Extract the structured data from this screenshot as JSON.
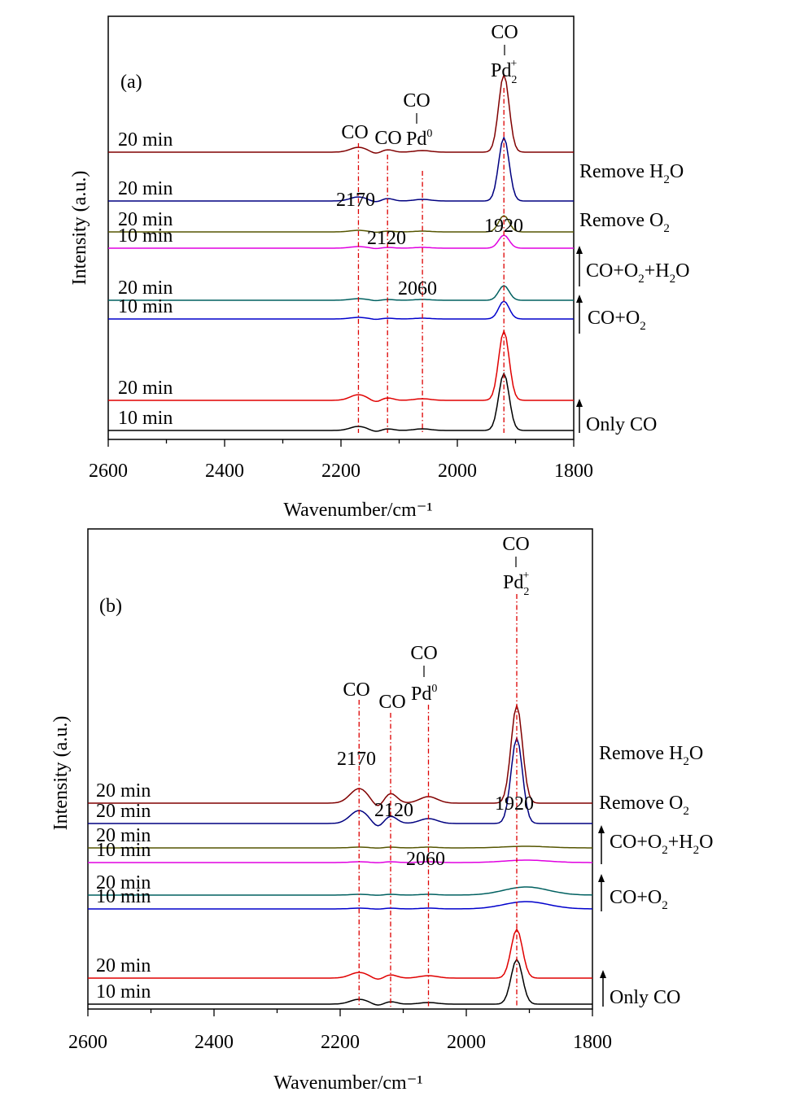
{
  "chart_data": [
    {
      "type": "line",
      "panel_label": "(a)",
      "xlabel": "Wavenumber/cm⁻¹",
      "ylabel": "Intensity (a.u.)",
      "xlim": [
        2600,
        1800
      ],
      "xticks": [
        "2600",
        "2400",
        "2200",
        "2000",
        "1800"
      ],
      "peak_positions": [
        2170,
        2120,
        2060,
        1920
      ],
      "peak_labels": [
        "2170",
        "2120",
        "2060",
        "1920"
      ],
      "species": {
        "co": "CO",
        "pd0": "Pd",
        "pd0_sup": "0",
        "pd2": "Pd",
        "pd2_sub": "2",
        "pd2_sup": "+"
      },
      "conditions": [
        {
          "main": "Only CO"
        },
        {
          "main": "CO+O",
          "sub": "2"
        },
        {
          "main": "CO+O",
          "sub": "2",
          "tail": "+H",
          "sub2": "2",
          "tail2": "O"
        },
        {
          "main": "Remove O",
          "sub": "2"
        },
        {
          "main": "Remove H",
          "sub": "2",
          "tail": "O"
        }
      ],
      "series": [
        {
          "name": "10 min",
          "condition": "Only CO",
          "color": "#000000",
          "offset": 0.03,
          "bands": [
            0.05,
            0.02,
            0.02,
            0.7
          ],
          "broad": 0.0
        },
        {
          "name": "20 min",
          "condition": "Only CO",
          "color": "#e00000",
          "offset": 0.4,
          "bands": [
            0.07,
            0.03,
            0.02,
            0.85
          ],
          "broad": 0.0
        },
        {
          "name": "10 min",
          "condition": "CO+O2",
          "color": "#0000cc",
          "offset": 1.4,
          "bands": [
            0.02,
            0.01,
            0.01,
            0.22
          ],
          "broad": 0.0
        },
        {
          "name": "20 min",
          "condition": "CO+O2",
          "color": "#006060",
          "offset": 1.63,
          "bands": [
            0.02,
            0.01,
            0.01,
            0.18
          ],
          "broad": 0.0
        },
        {
          "name": "10 min",
          "condition": "CO+O2+H2O",
          "color": "#e000e0",
          "offset": 2.27,
          "bands": [
            0.02,
            0.01,
            0.01,
            0.16
          ],
          "broad": 0.0
        },
        {
          "name": "20 min",
          "condition": "CO+O2+H2O",
          "color": "#555500",
          "offset": 2.47,
          "bands": [
            0.02,
            0.01,
            0.01,
            0.2
          ],
          "broad": 0.0
        },
        {
          "name": "20 min",
          "condition": "Remove O2",
          "color": "#000080",
          "offset": 2.85,
          "bands": [
            0.05,
            0.03,
            0.02,
            0.78
          ],
          "broad": 0.0
        },
        {
          "name": "20 min",
          "condition": "Remove H2O",
          "color": "#800000",
          "offset": 3.45,
          "bands": [
            0.06,
            0.03,
            0.02,
            0.95
          ],
          "broad": 0.0
        }
      ],
      "grid": false
    },
    {
      "type": "line",
      "panel_label": "(b)",
      "xlabel": "Wavenumber/cm⁻¹",
      "ylabel": "Intensity (a.u.)",
      "xlim": [
        2600,
        1800
      ],
      "xticks": [
        "2600",
        "2400",
        "2200",
        "2000",
        "1800"
      ],
      "peak_positions": [
        2170,
        2120,
        2060,
        1920
      ],
      "peak_labels": [
        "2170",
        "2120",
        "2060",
        "1920"
      ],
      "species": {
        "co": "CO",
        "pd0": "Pd",
        "pd0_sup": "0",
        "pd2": "Pd",
        "pd2_sub": "2",
        "pd2_sup": "+"
      },
      "conditions": [
        {
          "main": "Only CO"
        },
        {
          "main": "CO+O",
          "sub": "2"
        },
        {
          "main": "CO+O",
          "sub": "2",
          "tail": "+H",
          "sub2": "2",
          "tail2": "O"
        },
        {
          "main": "Remove O",
          "sub": "2"
        },
        {
          "main": "Remove H",
          "sub": "2",
          "tail": "O"
        }
      ],
      "series": [
        {
          "name": "10 min",
          "condition": "Only CO",
          "color": "#000000",
          "offset": 0.03,
          "bands": [
            0.06,
            0.03,
            0.02,
            0.55
          ],
          "broad": 0.0
        },
        {
          "name": "20 min",
          "condition": "Only CO",
          "color": "#e00000",
          "offset": 0.35,
          "bands": [
            0.07,
            0.04,
            0.03,
            0.6
          ],
          "broad": 0.0
        },
        {
          "name": "10 min",
          "condition": "CO+O2",
          "color": "#0000cc",
          "offset": 1.2,
          "bands": [
            0.01,
            0.01,
            0.01,
            0.0
          ],
          "broad": 0.09
        },
        {
          "name": "20 min",
          "condition": "CO+O2",
          "color": "#006060",
          "offset": 1.37,
          "bands": [
            0.01,
            0.01,
            0.01,
            0.0
          ],
          "broad": 0.1
        },
        {
          "name": "10 min",
          "condition": "CO+O2+H2O",
          "color": "#e000e0",
          "offset": 1.77,
          "bands": [
            0.01,
            0.01,
            0.01,
            0.0
          ],
          "broad": 0.03
        },
        {
          "name": "20 min",
          "condition": "CO+O2+H2O",
          "color": "#555500",
          "offset": 1.95,
          "bands": [
            0.01,
            0.01,
            0.01,
            0.0
          ],
          "broad": 0.02
        },
        {
          "name": "20 min",
          "condition": "Remove O2",
          "color": "#000080",
          "offset": 2.25,
          "bands": [
            0.16,
            0.09,
            0.06,
            1.05
          ],
          "broad": 0.0
        },
        {
          "name": "20 min",
          "condition": "Remove H2O",
          "color": "#800000",
          "offset": 2.5,
          "bands": [
            0.18,
            0.12,
            0.08,
            1.2
          ],
          "broad": 0.0
        }
      ],
      "grid": false
    }
  ]
}
